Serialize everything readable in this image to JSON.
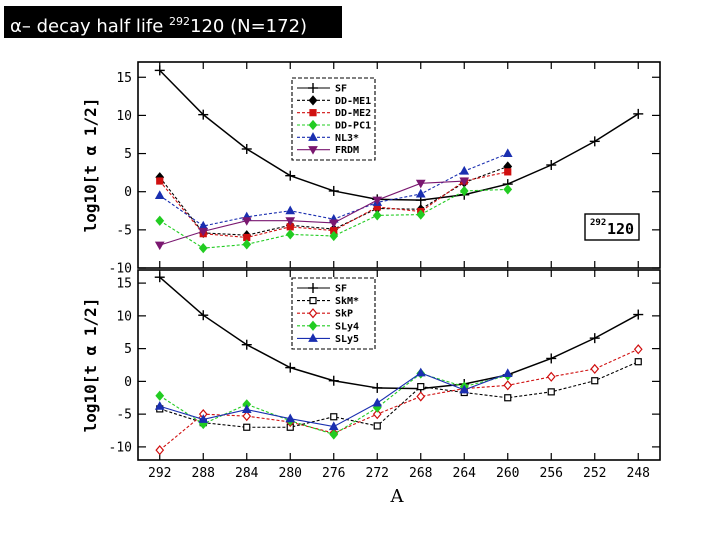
{
  "header": {
    "title_prefix": "α– decay half life ",
    "nuclide_mass": "292",
    "nuclide_rest": "120 (N=172)"
  },
  "chart_data": [
    {
      "type": "line",
      "panel": "top",
      "ylabel": "log10[t α 1/2]",
      "ylim": [
        -10,
        17
      ],
      "yticks": [
        -10,
        -5,
        0,
        5,
        10,
        15
      ],
      "x": [
        292,
        288,
        284,
        280,
        276,
        272,
        268,
        264,
        260,
        256,
        252,
        248
      ],
      "xlim": [
        294,
        246
      ],
      "grid": false,
      "legend_position": "top-center",
      "annotation": {
        "mass": "292",
        "element": "120"
      },
      "series": [
        {
          "name": "SF",
          "color": "#000000",
          "marker": "plus",
          "dash": "solid",
          "values": [
            15.9,
            10.1,
            5.6,
            2.1,
            0.1,
            -1.0,
            -1.1,
            -0.4,
            1.0,
            3.5,
            6.6,
            10.2
          ]
        },
        {
          "name": "DD-ME1",
          "color": "#000000",
          "marker": "diamond",
          "dash": "dashed",
          "values": [
            1.9,
            -5.4,
            -5.7,
            -4.4,
            -4.9,
            -2.2,
            -2.3,
            1.2,
            3.3,
            null,
            null,
            null
          ]
        },
        {
          "name": "DD-ME2",
          "color": "#d01010",
          "marker": "square",
          "dash": "dashed",
          "values": [
            1.4,
            -5.5,
            -6.0,
            -4.6,
            -5.1,
            -2.0,
            -2.6,
            1.4,
            2.6,
            null,
            null,
            null
          ]
        },
        {
          "name": "DD-PC1",
          "color": "#22cc22",
          "marker": "diamond",
          "dash": "dashed",
          "values": [
            -3.8,
            -7.4,
            -6.9,
            -5.6,
            -5.8,
            -3.1,
            -3.0,
            0.1,
            0.3,
            null,
            null,
            null
          ]
        },
        {
          "name": "NL3*",
          "color": "#1a2fb0",
          "marker": "triangle",
          "dash": "dashed",
          "values": [
            -0.5,
            -4.5,
            -3.3,
            -2.5,
            -3.6,
            -1.4,
            -0.3,
            2.7,
            5.0,
            null,
            null,
            null
          ]
        },
        {
          "name": "FRDM",
          "color": "#7a1870",
          "marker": "tri-down",
          "dash": "solid",
          "values": [
            -7.0,
            -5.2,
            -3.8,
            -3.8,
            -4.1,
            -1.1,
            1.1,
            1.4,
            null,
            null,
            null,
            null
          ]
        }
      ]
    },
    {
      "type": "line",
      "panel": "bottom",
      "ylabel": "log10[t α 1/2]",
      "xlabel": "A",
      "ylim": [
        -12,
        17
      ],
      "yticks": [
        -10,
        -5,
        0,
        5,
        10,
        15
      ],
      "x": [
        292,
        288,
        284,
        280,
        276,
        272,
        268,
        264,
        260,
        256,
        252,
        248
      ],
      "xticks": [
        292,
        288,
        284,
        280,
        276,
        272,
        268,
        264,
        260,
        256,
        252,
        248
      ],
      "xlim": [
        294,
        246
      ],
      "grid": false,
      "legend_position": "top-center",
      "series": [
        {
          "name": "SF",
          "color": "#000000",
          "marker": "plus",
          "dash": "solid",
          "values": [
            15.9,
            10.1,
            5.6,
            2.1,
            0.1,
            -1.0,
            -1.1,
            -0.4,
            1.0,
            3.5,
            6.6,
            10.2
          ]
        },
        {
          "name": "SkM*",
          "color": "#000000",
          "marker": "square-open",
          "dash": "dashed",
          "values": [
            -4.2,
            -6.3,
            -7.0,
            -7.0,
            -5.4,
            -6.8,
            -0.8,
            -1.7,
            -2.5,
            -1.6,
            0.1,
            3.0
          ]
        },
        {
          "name": "SkP",
          "color": "#d01010",
          "marker": "diamond-open",
          "dash": "dashed",
          "values": [
            -10.5,
            -5.0,
            -5.3,
            -6.2,
            -7.9,
            -5.0,
            -2.3,
            -1.1,
            -0.6,
            0.7,
            1.9,
            4.9
          ]
        },
        {
          "name": "SLy4",
          "color": "#22cc22",
          "marker": "diamond",
          "dash": "dashed",
          "values": [
            -2.2,
            -6.5,
            -3.5,
            -6.0,
            -8.1,
            -4.0,
            1.2,
            -0.8,
            0.9,
            null,
            null,
            null
          ]
        },
        {
          "name": "SLy5",
          "color": "#1a2fb0",
          "marker": "triangle",
          "dash": "solid",
          "values": [
            -3.8,
            -5.8,
            -4.3,
            -5.7,
            -6.9,
            -3.3,
            1.3,
            -1.3,
            1.2,
            null,
            null,
            null
          ]
        }
      ]
    }
  ]
}
